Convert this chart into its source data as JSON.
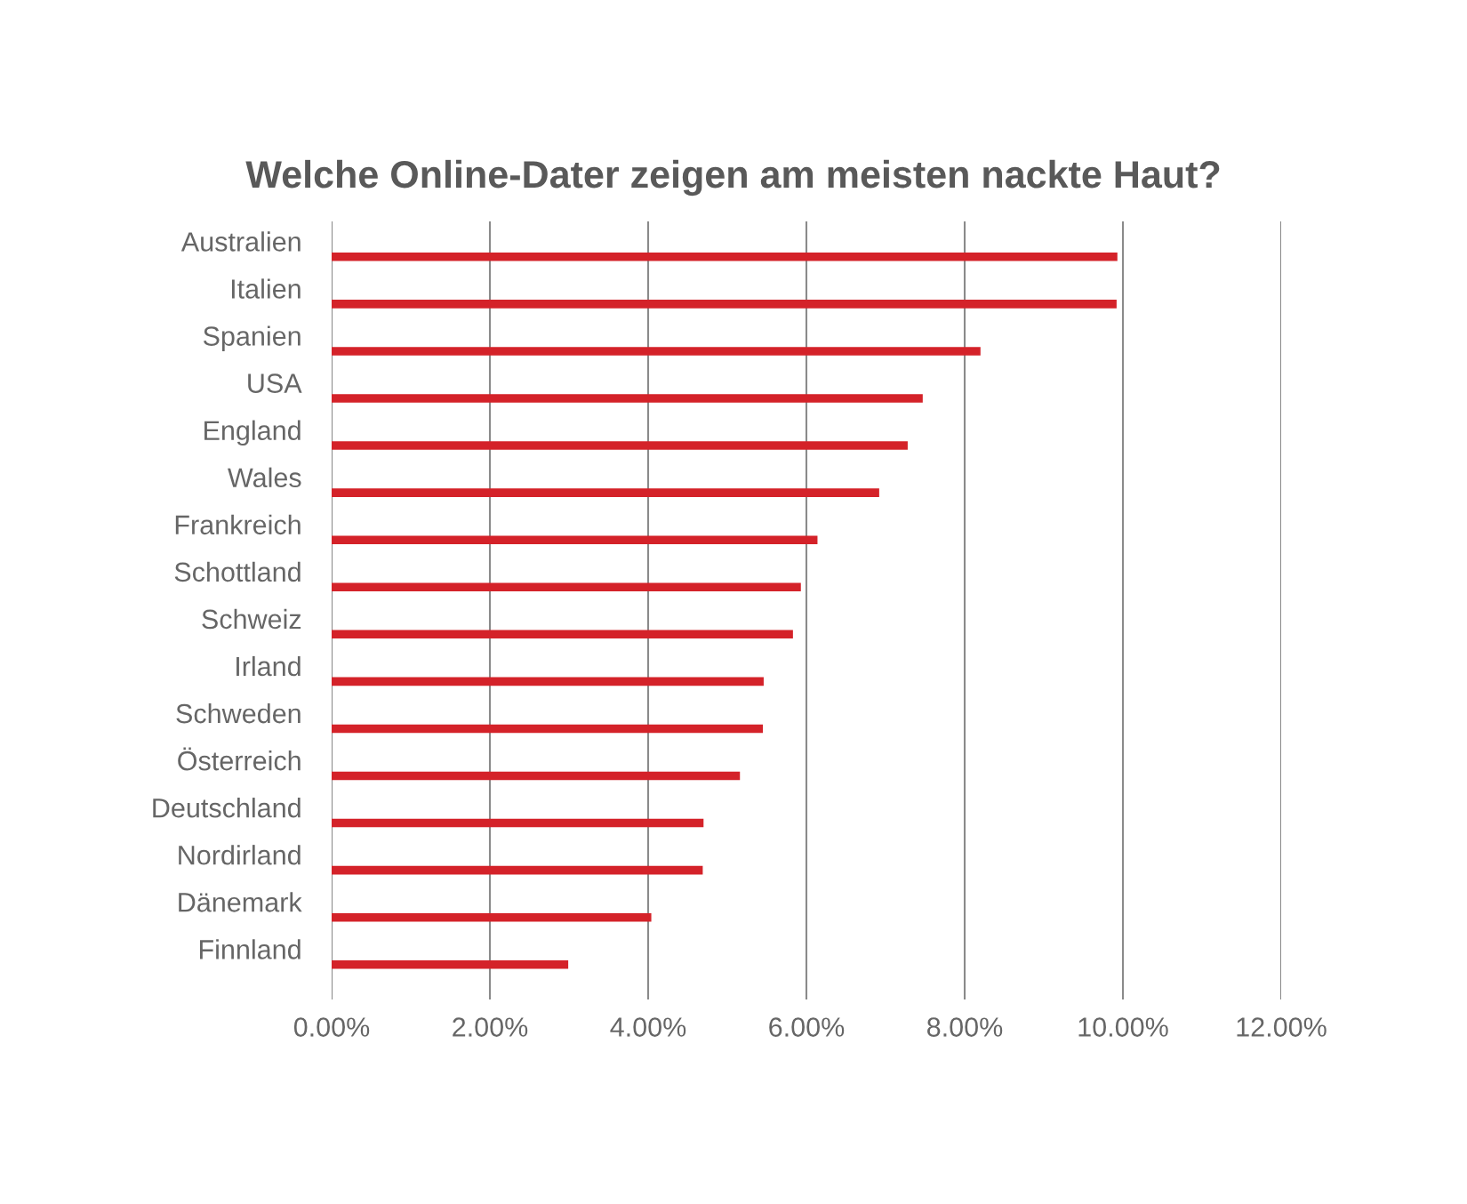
{
  "chart_data": {
    "type": "bar",
    "orientation": "horizontal",
    "title": "Welche Online-Dater zeigen am meisten nackte Haut?",
    "categories": [
      "Australien",
      "Italien",
      "Spanien",
      "USA",
      "England",
      "Wales",
      "Frankreich",
      "Schottland",
      "Schweiz",
      "Irland",
      "Schweden",
      "Österreich",
      "Deutschland",
      "Nordirland",
      "Dänemark",
      "Finnland"
    ],
    "values": [
      9.93,
      9.92,
      8.2,
      7.47,
      7.28,
      6.92,
      6.14,
      5.93,
      5.83,
      5.46,
      5.45,
      5.16,
      4.7,
      4.69,
      4.04,
      2.99
    ],
    "color": "#d42229",
    "xlim": [
      0,
      12
    ],
    "xticks": [
      {
        "value": 0,
        "label": "0.00%"
      },
      {
        "value": 2,
        "label": "2.00%"
      },
      {
        "value": 4,
        "label": "4.00%"
      },
      {
        "value": 6,
        "label": "6.00%"
      },
      {
        "value": 8,
        "label": "8.00%"
      },
      {
        "value": 10,
        "label": "10.00%"
      },
      {
        "value": 12,
        "label": "12.00%"
      }
    ],
    "grid": "x"
  }
}
